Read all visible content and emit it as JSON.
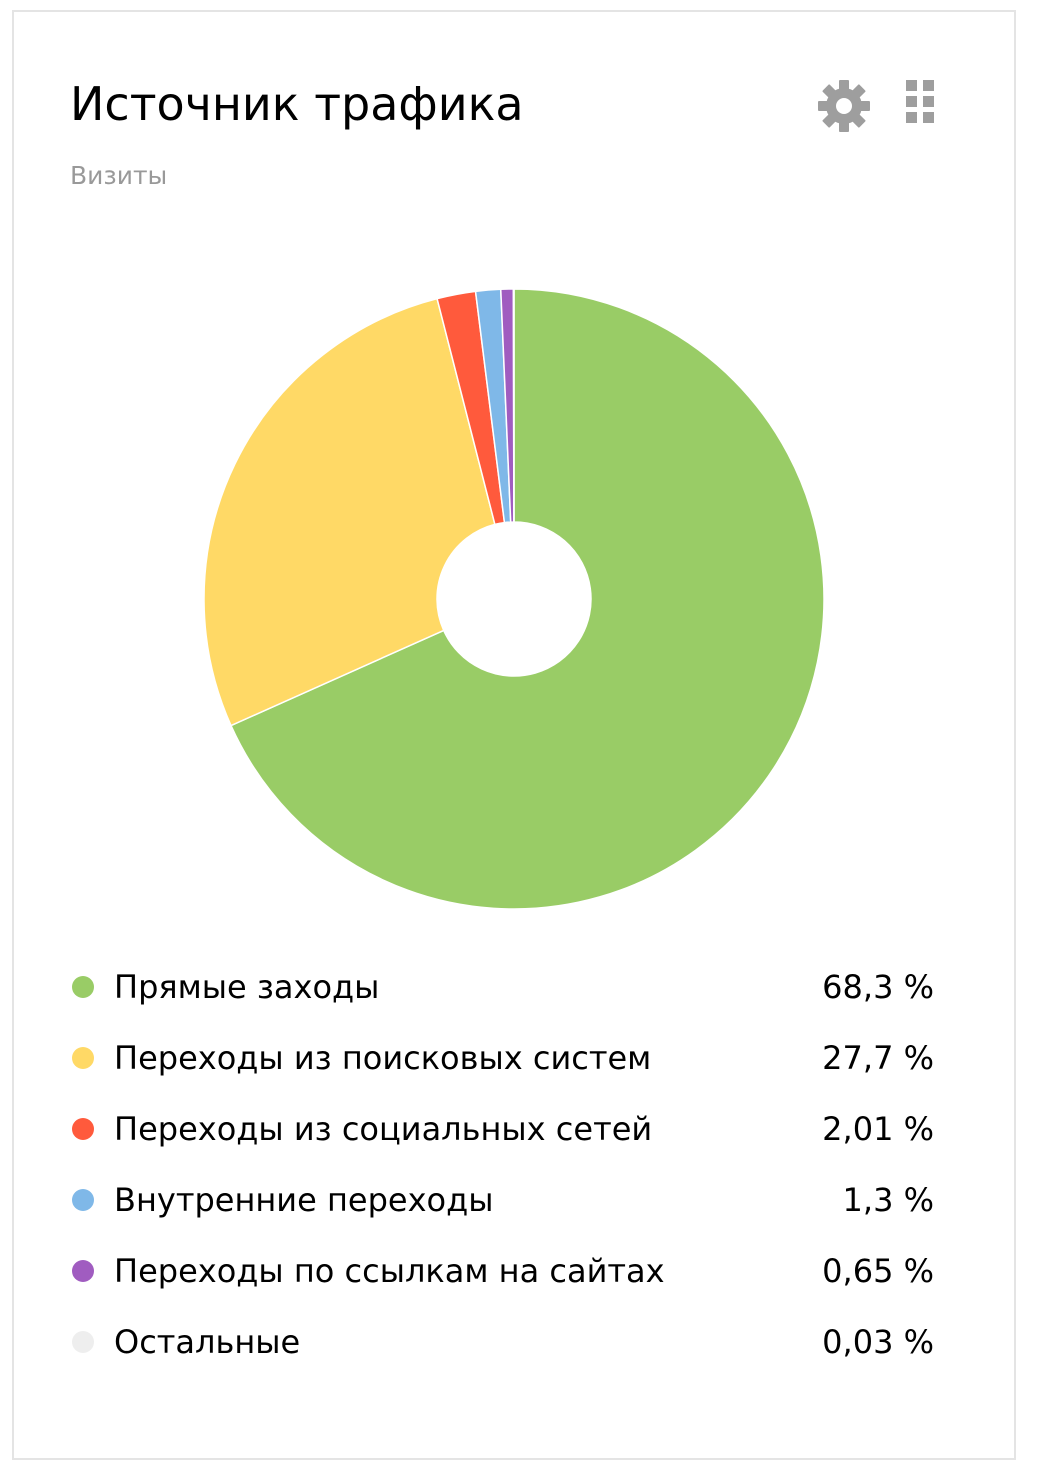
{
  "header": {
    "title": "Источник трафика",
    "subtitle": "Визиты"
  },
  "icons": {
    "settings": "gear-icon",
    "drag": "drag-grid-icon",
    "icon_color": "#9e9e9e"
  },
  "chart_data": {
    "type": "pie",
    "donut": true,
    "title": "",
    "series": [
      {
        "name": "Прямые заходы",
        "value": 68.3,
        "display": "68,3 %",
        "color": "#99cc66"
      },
      {
        "name": "Переходы из поисковых систем",
        "value": 27.7,
        "display": "27,7 %",
        "color": "#ffd966"
      },
      {
        "name": "Переходы из социальных сетей",
        "value": 2.01,
        "display": "2,01 %",
        "color": "#ff5a3c"
      },
      {
        "name": "Внутренние переходы",
        "value": 1.3,
        "display": "1,3 %",
        "color": "#7fb8e8"
      },
      {
        "name": "Переходы по ссылкам на сайтах",
        "value": 0.65,
        "display": "0,65 %",
        "color": "#a05cc0"
      },
      {
        "name": "Остальные",
        "value": 0.03,
        "display": "0,03 %",
        "color": "#eeeeee"
      }
    ],
    "legend_position": "bottom"
  }
}
